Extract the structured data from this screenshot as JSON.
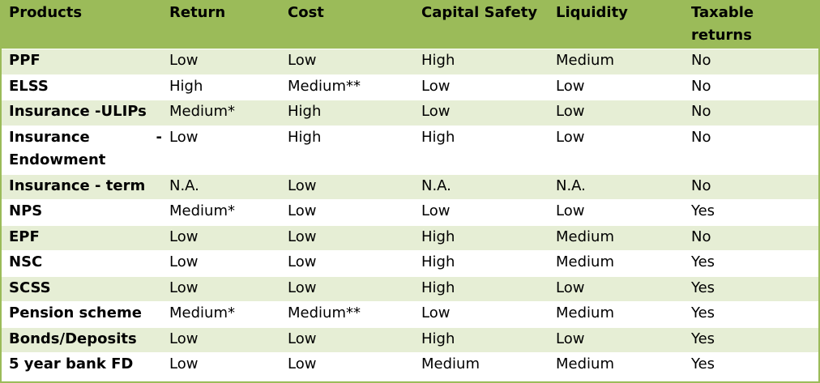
{
  "table": {
    "columns": [
      "Products",
      "Return",
      "Cost",
      "Capital Safety",
      "Liquidity",
      "Taxable returns"
    ],
    "rows": [
      {
        "product": "PPF",
        "return": "Low",
        "cost": "Low",
        "capital_safety": "High",
        "liquidity": "Medium",
        "taxable": "No"
      },
      {
        "product": "ELSS",
        "return": "High",
        "cost": "Medium**",
        "capital_safety": "Low",
        "liquidity": "Low",
        "taxable": "No"
      },
      {
        "product": "Insurance -ULIPs",
        "return": "Medium*",
        "cost": "High",
        "capital_safety": "Low",
        "liquidity": "Low",
        "taxable": "No"
      },
      {
        "product": "Insurance - Endowment",
        "return": "Low",
        "cost": "High",
        "capital_safety": "High",
        "liquidity": "Low",
        "taxable": "No"
      },
      {
        "product": "Insurance - term",
        "return": "N.A.",
        "cost": "Low",
        "capital_safety": "N.A.",
        "liquidity": "N.A.",
        "taxable": "No"
      },
      {
        "product": "NPS",
        "return": "Medium*",
        "cost": "Low",
        "capital_safety": "Low",
        "liquidity": "Low",
        "taxable": "Yes"
      },
      {
        "product": "EPF",
        "return": "Low",
        "cost": "Low",
        "capital_safety": "High",
        "liquidity": "Medium",
        "taxable": "No"
      },
      {
        "product": "NSC",
        "return": "Low",
        "cost": "Low",
        "capital_safety": "High",
        "liquidity": "Medium",
        "taxable": "Yes"
      },
      {
        "product": "SCSS",
        "return": "Low",
        "cost": "Low",
        "capital_safety": "High",
        "liquidity": "Low",
        "taxable": "Yes"
      },
      {
        "product": "Pension scheme",
        "return": "Medium*",
        "cost": "Medium**",
        "capital_safety": "Low",
        "liquidity": "Medium",
        "taxable": "Yes"
      },
      {
        "product": "Bonds/Deposits",
        "return": "Low",
        "cost": "Low",
        "capital_safety": "High",
        "liquidity": "Low",
        "taxable": "Yes"
      },
      {
        "product": "5 year bank FD",
        "return": "Low",
        "cost": "Low",
        "capital_safety": "Medium",
        "liquidity": "Medium",
        "taxable": "Yes"
      }
    ]
  },
  "colors": {
    "header_bg": "#9bbb59",
    "band_light": "#e6eed5",
    "band_white": "#ffffff"
  }
}
